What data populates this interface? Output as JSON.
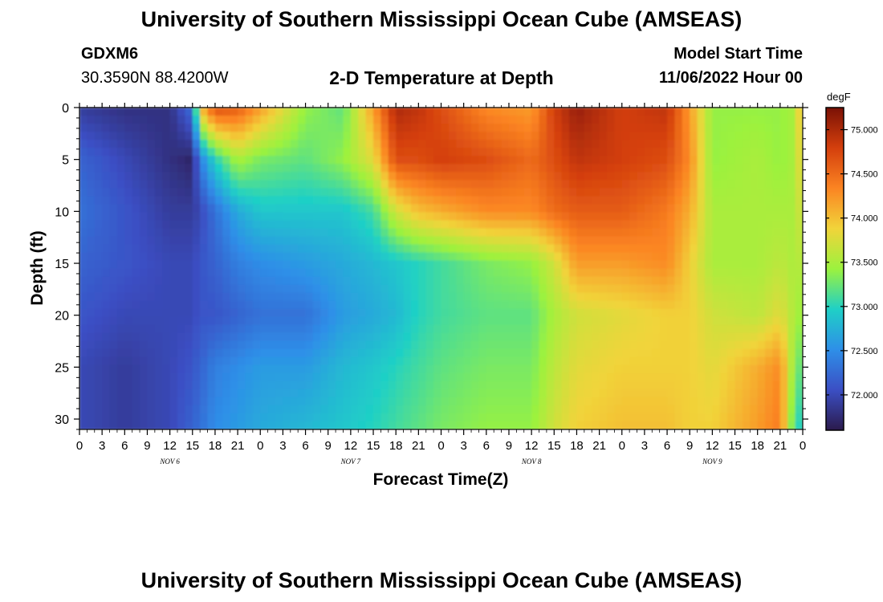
{
  "header": {
    "title": "University of Southern Mississippi Ocean Cube (AMSEAS)",
    "station": "GDXM6",
    "coordinates": "30.3590N  88.4200W",
    "subtitle": "2-D Temperature at Depth",
    "model_start_label": "Model Start Time",
    "model_start_value": "11/06/2022 Hour 00"
  },
  "footer": {
    "title": "University of Southern Mississippi Ocean Cube (AMSEAS)"
  },
  "colors": {
    "colormap": [
      "#2b1a4c",
      "#3b4fc4",
      "#2e8fe8",
      "#1fd0c6",
      "#9cf23e",
      "#f1d43a",
      "#fb8422",
      "#d43f0d",
      "#7a1105"
    ]
  },
  "chart_data": {
    "type": "heatmap",
    "xlabel": "Forecast Time(Z)",
    "ylabel": "Depth (ft)",
    "x_hours": [
      0,
      96
    ],
    "x_ticks": [
      "0",
      "3",
      "6",
      "9",
      "12",
      "15",
      "18",
      "21",
      "0",
      "3",
      "6",
      "9",
      "12",
      "15",
      "18",
      "21",
      "0",
      "3",
      "6",
      "9",
      "12",
      "15",
      "18",
      "21",
      "0",
      "3",
      "6",
      "9",
      "12",
      "15",
      "18",
      "21",
      "0"
    ],
    "day_labels": [
      "NOV 6",
      "NOV 7",
      "NOV 8",
      "NOV 9"
    ],
    "y_ticks": [
      0,
      5,
      10,
      15,
      20,
      25,
      30
    ],
    "ylim": [
      0,
      31
    ],
    "y_inverted": true,
    "colorbar": {
      "label": "degF",
      "range": [
        71.6,
        75.25
      ],
      "ticks": [
        "72.000",
        "72.500",
        "73.000",
        "73.500",
        "74.000",
        "74.500",
        "75.000"
      ]
    },
    "temperature_profiles": {
      "depths_ft": [
        0,
        5,
        10,
        15,
        20,
        25,
        31
      ],
      "columns": [
        {
          "hour": 0,
          "temps": [
            71.9,
            72.2,
            72.3,
            72.2,
            72.1,
            72.0,
            72.0
          ]
        },
        {
          "hour": 6,
          "temps": [
            71.8,
            72.0,
            72.1,
            72.1,
            72.0,
            71.9,
            71.9
          ]
        },
        {
          "hour": 12,
          "temps": [
            71.8,
            71.8,
            71.9,
            72.0,
            72.0,
            72.0,
            72.0
          ]
        },
        {
          "hour": 15,
          "temps": [
            72.3,
            71.7,
            71.9,
            72.0,
            72.0,
            72.1,
            72.2
          ]
        },
        {
          "hour": 16,
          "temps": [
            74.0,
            72.4,
            72.0,
            72.1,
            72.1,
            72.2,
            72.3
          ]
        },
        {
          "hour": 18,
          "temps": [
            74.7,
            73.0,
            72.3,
            72.2,
            72.1,
            72.4,
            72.5
          ]
        },
        {
          "hour": 21,
          "temps": [
            74.6,
            73.5,
            72.7,
            72.4,
            72.2,
            72.5,
            72.6
          ]
        },
        {
          "hour": 24,
          "temps": [
            74.2,
            73.3,
            72.9,
            72.5,
            72.3,
            72.6,
            72.7
          ]
        },
        {
          "hour": 30,
          "temps": [
            73.4,
            73.2,
            72.9,
            72.6,
            72.3,
            72.6,
            72.8
          ]
        },
        {
          "hour": 35,
          "temps": [
            73.2,
            73.4,
            72.9,
            72.7,
            72.6,
            72.8,
            72.9
          ]
        },
        {
          "hour": 39,
          "temps": [
            74.2,
            73.8,
            73.1,
            72.8,
            72.7,
            72.9,
            73.0
          ]
        },
        {
          "hour": 42,
          "temps": [
            75.0,
            74.7,
            73.7,
            72.9,
            72.8,
            73.0,
            73.1
          ]
        },
        {
          "hour": 45,
          "temps": [
            74.9,
            74.7,
            74.0,
            73.0,
            73.0,
            73.1,
            73.2
          ]
        },
        {
          "hour": 48,
          "temps": [
            74.7,
            74.8,
            74.1,
            73.1,
            73.1,
            73.2,
            73.3
          ]
        },
        {
          "hour": 54,
          "temps": [
            74.3,
            74.7,
            74.3,
            73.3,
            73.2,
            73.3,
            73.4
          ]
        },
        {
          "hour": 60,
          "temps": [
            74.2,
            74.5,
            74.3,
            73.4,
            73.2,
            73.3,
            73.4
          ]
        },
        {
          "hour": 63,
          "temps": [
            74.8,
            74.7,
            74.5,
            73.7,
            73.5,
            73.6,
            73.7
          ]
        },
        {
          "hour": 66,
          "temps": [
            75.1,
            74.9,
            74.6,
            74.2,
            73.7,
            73.8,
            73.9
          ]
        },
        {
          "hour": 72,
          "temps": [
            74.8,
            74.8,
            74.6,
            74.2,
            73.8,
            73.9,
            74.0
          ]
        },
        {
          "hour": 78,
          "temps": [
            74.9,
            74.7,
            74.4,
            74.3,
            73.9,
            73.9,
            74.0
          ]
        },
        {
          "hour": 81,
          "temps": [
            74.2,
            74.3,
            74.1,
            73.9,
            73.9,
            73.9,
            73.9
          ]
        },
        {
          "hour": 84,
          "temps": [
            73.4,
            73.4,
            73.5,
            73.5,
            73.7,
            73.8,
            73.9
          ]
        },
        {
          "hour": 90,
          "temps": [
            73.4,
            73.5,
            73.5,
            73.5,
            73.6,
            74.1,
            74.2
          ]
        },
        {
          "hour": 93,
          "temps": [
            73.4,
            73.4,
            73.5,
            73.6,
            73.8,
            74.3,
            74.4
          ]
        },
        {
          "hour": 95,
          "temps": [
            73.5,
            73.5,
            73.5,
            73.5,
            73.5,
            73.3,
            73.0
          ]
        },
        {
          "hour": 96,
          "temps": [
            74.2,
            74.0,
            73.8,
            73.6,
            73.4,
            73.2,
            73.0
          ]
        }
      ]
    }
  }
}
